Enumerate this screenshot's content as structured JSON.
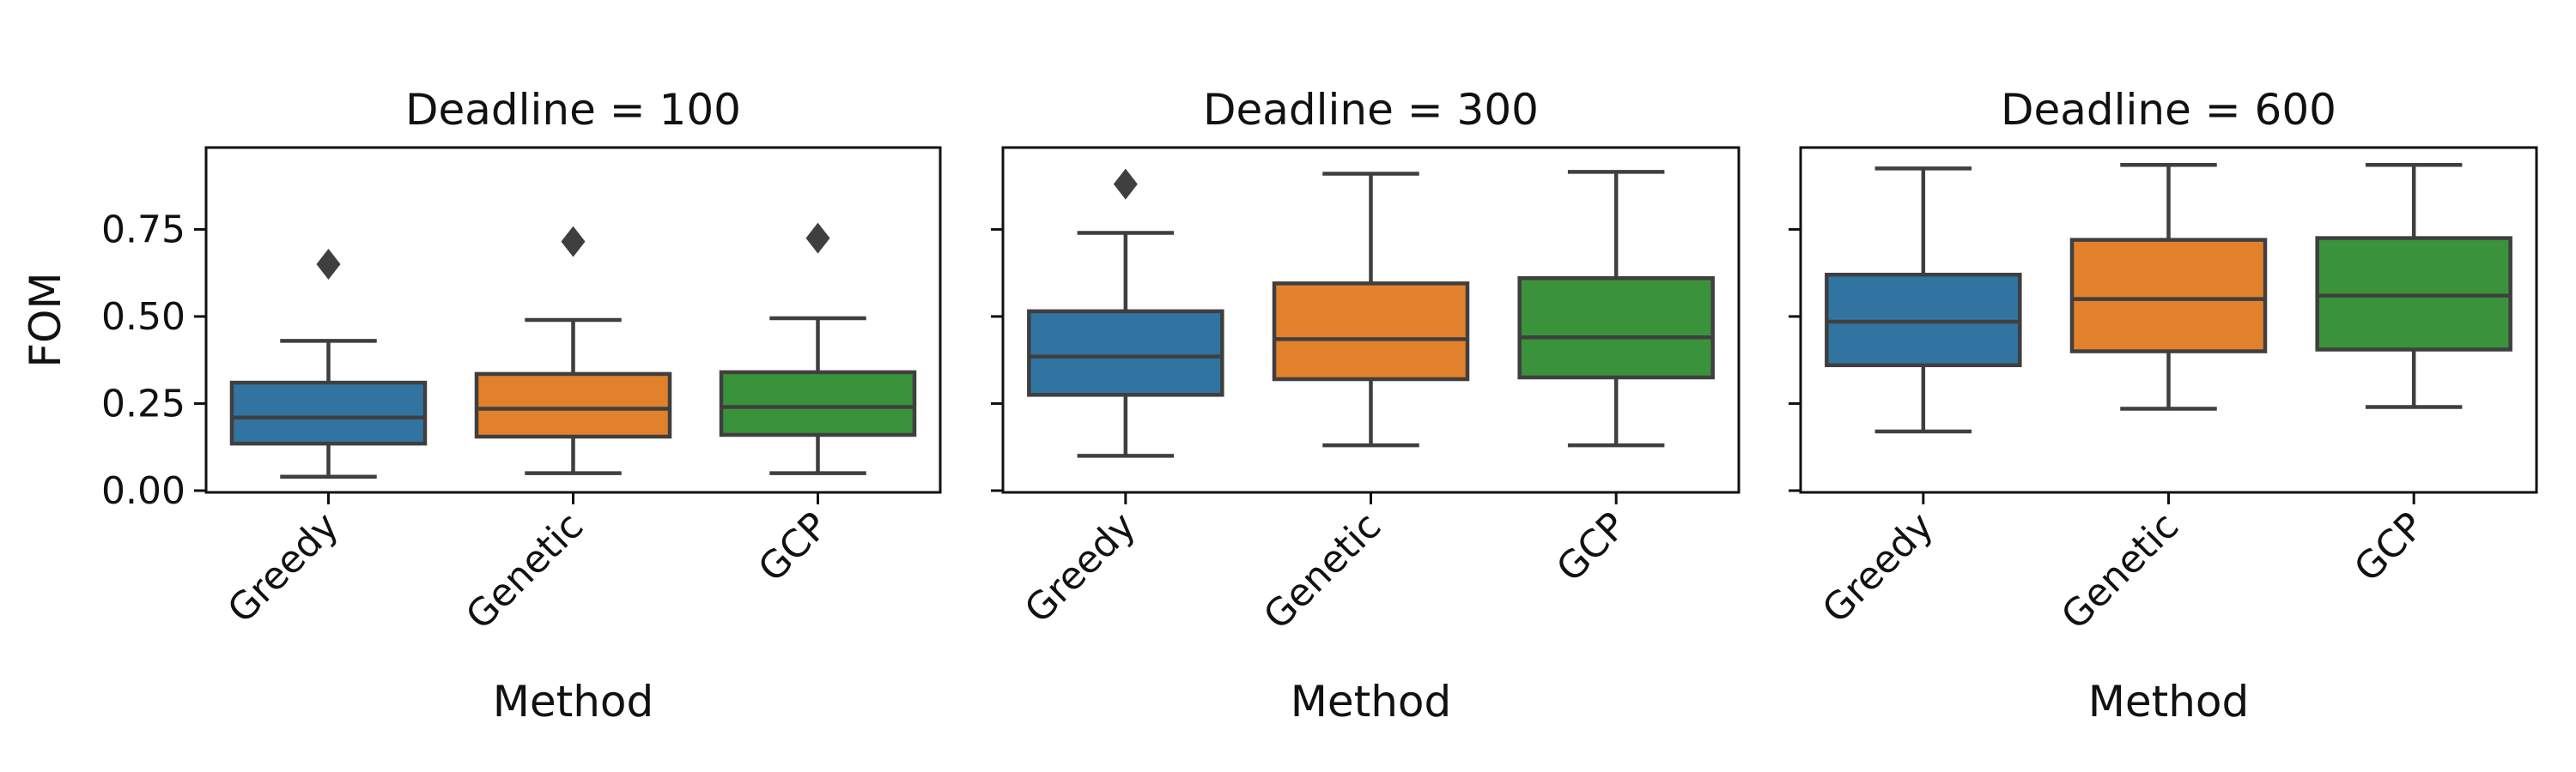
{
  "chart_data": [
    {
      "type": "box",
      "title": "Deadline = 100",
      "xlabel": "Method",
      "ylabel": "FOM",
      "ylim": [
        -0.005,
        0.985
      ],
      "yticks": [
        "0.00",
        "0.25",
        "0.50",
        "0.75"
      ],
      "yticks_show_labels": true,
      "categories": [
        "Greedy",
        "Genetic",
        "GCP"
      ],
      "boxes": [
        {
          "category": "Greedy",
          "whisker_low": 0.04,
          "q1": 0.135,
          "median": 0.21,
          "q3": 0.31,
          "whisker_high": 0.43,
          "outliers": [
            0.65
          ]
        },
        {
          "category": "Genetic",
          "whisker_low": 0.05,
          "q1": 0.155,
          "median": 0.235,
          "q3": 0.335,
          "whisker_high": 0.49,
          "outliers": [
            0.715
          ]
        },
        {
          "category": "GCP",
          "whisker_low": 0.05,
          "q1": 0.16,
          "median": 0.24,
          "q3": 0.34,
          "whisker_high": 0.495,
          "outliers": [
            0.725
          ]
        }
      ]
    },
    {
      "type": "box",
      "title": "Deadline = 300",
      "xlabel": "Method",
      "ylabel": "",
      "ylim": [
        -0.005,
        0.985
      ],
      "yticks": [
        "0.00",
        "0.25",
        "0.50",
        "0.75"
      ],
      "yticks_show_labels": false,
      "categories": [
        "Greedy",
        "Genetic",
        "GCP"
      ],
      "boxes": [
        {
          "category": "Greedy",
          "whisker_low": 0.1,
          "q1": 0.275,
          "median": 0.385,
          "q3": 0.515,
          "whisker_high": 0.74,
          "outliers": [
            0.88
          ]
        },
        {
          "category": "Genetic",
          "whisker_low": 0.13,
          "q1": 0.32,
          "median": 0.435,
          "q3": 0.595,
          "whisker_high": 0.91,
          "outliers": []
        },
        {
          "category": "GCP",
          "whisker_low": 0.13,
          "q1": 0.325,
          "median": 0.44,
          "q3": 0.61,
          "whisker_high": 0.915,
          "outliers": []
        }
      ]
    },
    {
      "type": "box",
      "title": "Deadline = 600",
      "xlabel": "Method",
      "ylabel": "",
      "ylim": [
        -0.005,
        0.985
      ],
      "yticks": [
        "0.00",
        "0.25",
        "0.50",
        "0.75"
      ],
      "yticks_show_labels": false,
      "categories": [
        "Greedy",
        "Genetic",
        "GCP"
      ],
      "boxes": [
        {
          "category": "Greedy",
          "whisker_low": 0.17,
          "q1": 0.36,
          "median": 0.485,
          "q3": 0.62,
          "whisker_high": 0.925,
          "outliers": []
        },
        {
          "category": "Genetic",
          "whisker_low": 0.235,
          "q1": 0.4,
          "median": 0.55,
          "q3": 0.72,
          "whisker_high": 0.935,
          "outliers": []
        },
        {
          "category": "GCP",
          "whisker_low": 0.24,
          "q1": 0.405,
          "median": 0.56,
          "q3": 0.725,
          "whisker_high": 0.935,
          "outliers": []
        }
      ]
    }
  ],
  "colors": {
    "Greedy": "#3274a1",
    "Genetic": "#e1812c",
    "GCP": "#3a923a",
    "line": "#3f3f3f",
    "axis": "#111111"
  }
}
